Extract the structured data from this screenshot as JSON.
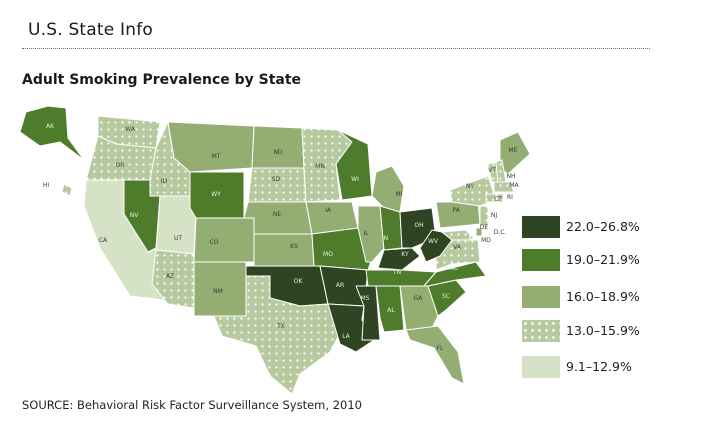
{
  "page_title": "U.S. State Info",
  "map_title": "Adult Smoking Prevalence by State",
  "source": "SOURCE: Behavioral Risk Factor Surveillance System, 2010",
  "legend": [
    {
      "label": "22.0–26.8%",
      "color": "#2f4423",
      "pattern": "solid"
    },
    {
      "label": "19.0–21.9%",
      "color": "#4f7c2a",
      "pattern": "solid"
    },
    {
      "label": "16.0–18.9%",
      "color": "#93ad72",
      "pattern": "solid"
    },
    {
      "label": "13.0–15.9%",
      "color": "#b7c99e",
      "pattern": "dotted"
    },
    {
      "label": "9.1–12.9%",
      "color": "#d6e2c6",
      "pattern": "solid"
    }
  ],
  "states": [
    {
      "abbr": "WA",
      "class": 3
    },
    {
      "abbr": "OR",
      "class": 3
    },
    {
      "abbr": "CA",
      "class": 4
    },
    {
      "abbr": "ID",
      "class": 3
    },
    {
      "abbr": "NV",
      "class": 1
    },
    {
      "abbr": "UT",
      "class": 4
    },
    {
      "abbr": "AZ",
      "class": 3
    },
    {
      "abbr": "MT",
      "class": 2
    },
    {
      "abbr": "WY",
      "class": 1
    },
    {
      "abbr": "CO",
      "class": 2
    },
    {
      "abbr": "NM",
      "class": 2
    },
    {
      "abbr": "ND",
      "class": 2
    },
    {
      "abbr": "SD",
      "class": 3
    },
    {
      "abbr": "NE",
      "class": 2
    },
    {
      "abbr": "KS",
      "class": 2
    },
    {
      "abbr": "OK",
      "class": 0
    },
    {
      "abbr": "TX",
      "class": 3
    },
    {
      "abbr": "MN",
      "class": 3
    },
    {
      "abbr": "IA",
      "class": 2
    },
    {
      "abbr": "MO",
      "class": 1
    },
    {
      "abbr": "AR",
      "class": 0
    },
    {
      "abbr": "LA",
      "class": 0
    },
    {
      "abbr": "WI",
      "class": 1
    },
    {
      "abbr": "IL",
      "class": 2
    },
    {
      "abbr": "MI",
      "class": 2
    },
    {
      "abbr": "IN",
      "class": 1
    },
    {
      "abbr": "OH",
      "class": 0
    },
    {
      "abbr": "KY",
      "class": 0
    },
    {
      "abbr": "TN",
      "class": 1
    },
    {
      "abbr": "MS",
      "class": 0
    },
    {
      "abbr": "AL",
      "class": 1
    },
    {
      "abbr": "GA",
      "class": 2
    },
    {
      "abbr": "FL",
      "class": 2
    },
    {
      "abbr": "SC",
      "class": 1
    },
    {
      "abbr": "NC",
      "class": 1
    },
    {
      "abbr": "VA",
      "class": 3
    },
    {
      "abbr": "WV",
      "class": 0
    },
    {
      "abbr": "PA",
      "class": 2
    },
    {
      "abbr": "NY",
      "class": 3
    },
    {
      "abbr": "ME",
      "class": 2
    },
    {
      "abbr": "VT",
      "class": 3
    },
    {
      "abbr": "NH",
      "class": 3
    },
    {
      "abbr": "MA",
      "class": 3
    },
    {
      "abbr": "CT",
      "class": 3
    },
    {
      "abbr": "RI",
      "class": 3
    },
    {
      "abbr": "NJ",
      "class": 3
    },
    {
      "abbr": "DE",
      "class": 2
    },
    {
      "abbr": "MD",
      "class": 3
    },
    {
      "abbr": "D.C.",
      "class": 3
    },
    {
      "abbr": "AK",
      "class": 1
    },
    {
      "abbr": "HI",
      "class": 3
    }
  ]
}
